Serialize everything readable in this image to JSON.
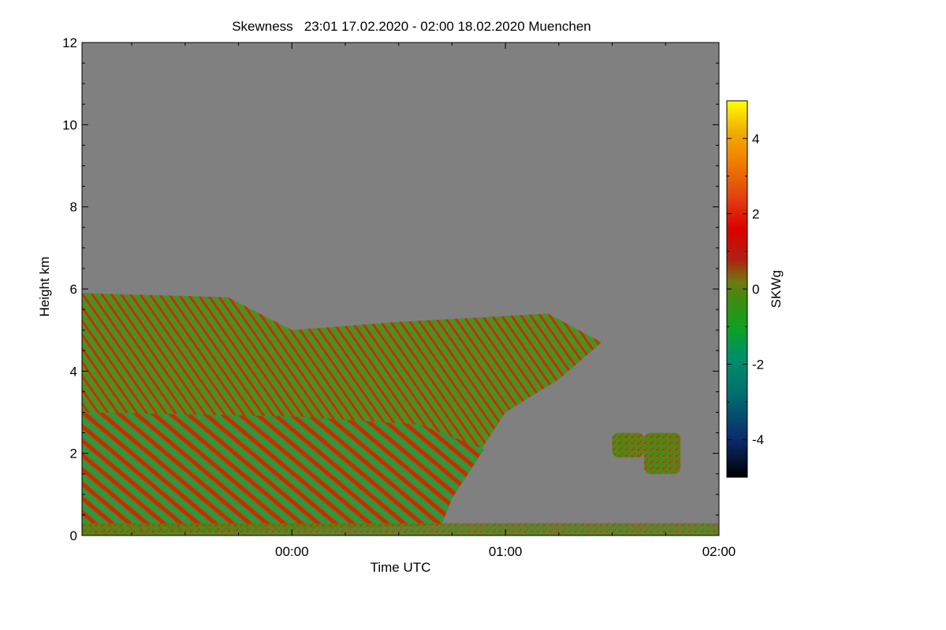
{
  "chart_data": {
    "type": "heatmap",
    "title": "Skewness   23:01 17.02.2020 - 02:00 18.02.2020 Muenchen",
    "xlabel": "Time UTC",
    "ylabel": "Height km",
    "x_range_hours": [
      -0.983,
      2.0
    ],
    "ylim": [
      0,
      12
    ],
    "x_ticks": [
      {
        "value": 0,
        "label": "00:00"
      },
      {
        "value": 1,
        "label": "01:00"
      },
      {
        "value": 2,
        "label": "02:00"
      }
    ],
    "y_ticks": [
      {
        "value": 0,
        "label": "0"
      },
      {
        "value": 2,
        "label": "2"
      },
      {
        "value": 4,
        "label": "4"
      },
      {
        "value": 6,
        "label": "6"
      },
      {
        "value": 8,
        "label": "8"
      },
      {
        "value": 10,
        "label": "10"
      },
      {
        "value": 12,
        "label": "12"
      }
    ],
    "colorbar": {
      "label": "SKWg",
      "range": [
        -5,
        5
      ],
      "ticks": [
        {
          "value": 4,
          "label": "4"
        },
        {
          "value": 2,
          "label": "2"
        },
        {
          "value": 0,
          "label": "0"
        },
        {
          "value": -2,
          "label": "-2"
        },
        {
          "value": -4,
          "label": "-4"
        }
      ],
      "colors": [
        "#000000",
        "#0a2a6e",
        "#00906a",
        "#10a020",
        "#2e8f10",
        "#708010",
        "#b02010",
        "#dc0000",
        "#e04010",
        "#f08000",
        "#f0b000",
        "#ffff00"
      ]
    },
    "background_color": "#808080",
    "signal_top_km": [
      {
        "t": -0.983,
        "h": 5.9
      },
      {
        "t": -0.3,
        "h": 5.8
      },
      {
        "t": 0.0,
        "h": 5.0
      },
      {
        "t": 0.5,
        "h": 5.2
      },
      {
        "t": 1.2,
        "h": 5.4
      },
      {
        "t": 1.45,
        "h": 4.7
      },
      {
        "t": 1.25,
        "h": 3.8
      },
      {
        "t": 1.0,
        "h": 3.0
      },
      {
        "t": 0.75,
        "h": 1.0
      },
      {
        "t": 0.7,
        "h": 0.25
      }
    ],
    "isolated_patches": [
      {
        "t_start": 1.5,
        "t_end": 1.65,
        "h_low": 1.9,
        "h_high": 2.5
      },
      {
        "t_start": 1.65,
        "t_end": 1.82,
        "h_low": 1.5,
        "h_high": 2.5
      }
    ],
    "near_surface_layer_km": 0.3
  }
}
